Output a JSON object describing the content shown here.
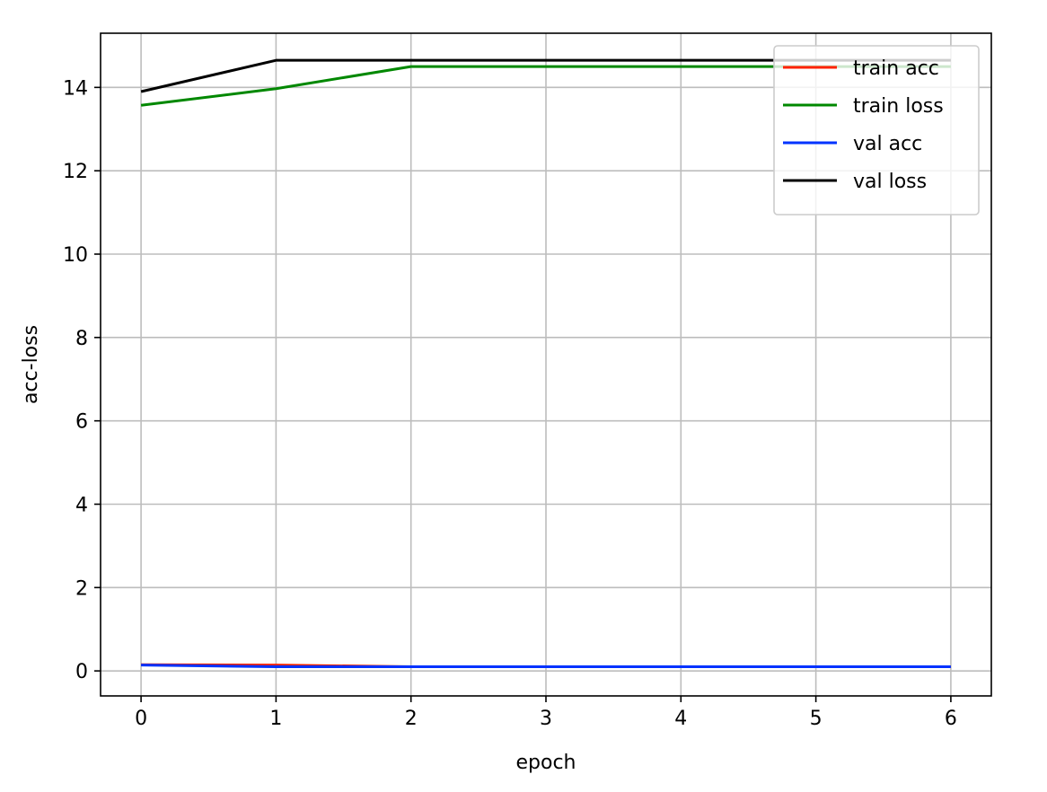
{
  "chart_data": {
    "type": "line",
    "title": "",
    "xlabel": "epoch",
    "ylabel": "acc-loss",
    "x": [
      0,
      1,
      2,
      3,
      4,
      5,
      6
    ],
    "xlim": [
      -0.3,
      6.3
    ],
    "ylim": [
      -0.6,
      15.3
    ],
    "xticks": [
      "0",
      "1",
      "2",
      "3",
      "4",
      "5",
      "6"
    ],
    "yticks": [
      "0",
      "2",
      "4",
      "6",
      "8",
      "10",
      "12",
      "14"
    ],
    "grid": true,
    "legend_position": "top-right",
    "series": [
      {
        "name": "train acc",
        "color": "#ff2200",
        "values": [
          0.15,
          0.14,
          0.1,
          0.1,
          0.1,
          0.1,
          0.1
        ]
      },
      {
        "name": "train loss",
        "color": "#008800",
        "values": [
          13.57,
          13.97,
          14.5,
          14.5,
          14.5,
          14.5,
          14.5
        ]
      },
      {
        "name": "val acc",
        "color": "#0033ff",
        "values": [
          0.14,
          0.1,
          0.1,
          0.1,
          0.1,
          0.1,
          0.1
        ]
      },
      {
        "name": "val loss",
        "color": "#000000",
        "values": [
          13.9,
          14.65,
          14.65,
          14.65,
          14.65,
          14.65,
          14.65
        ]
      }
    ]
  }
}
